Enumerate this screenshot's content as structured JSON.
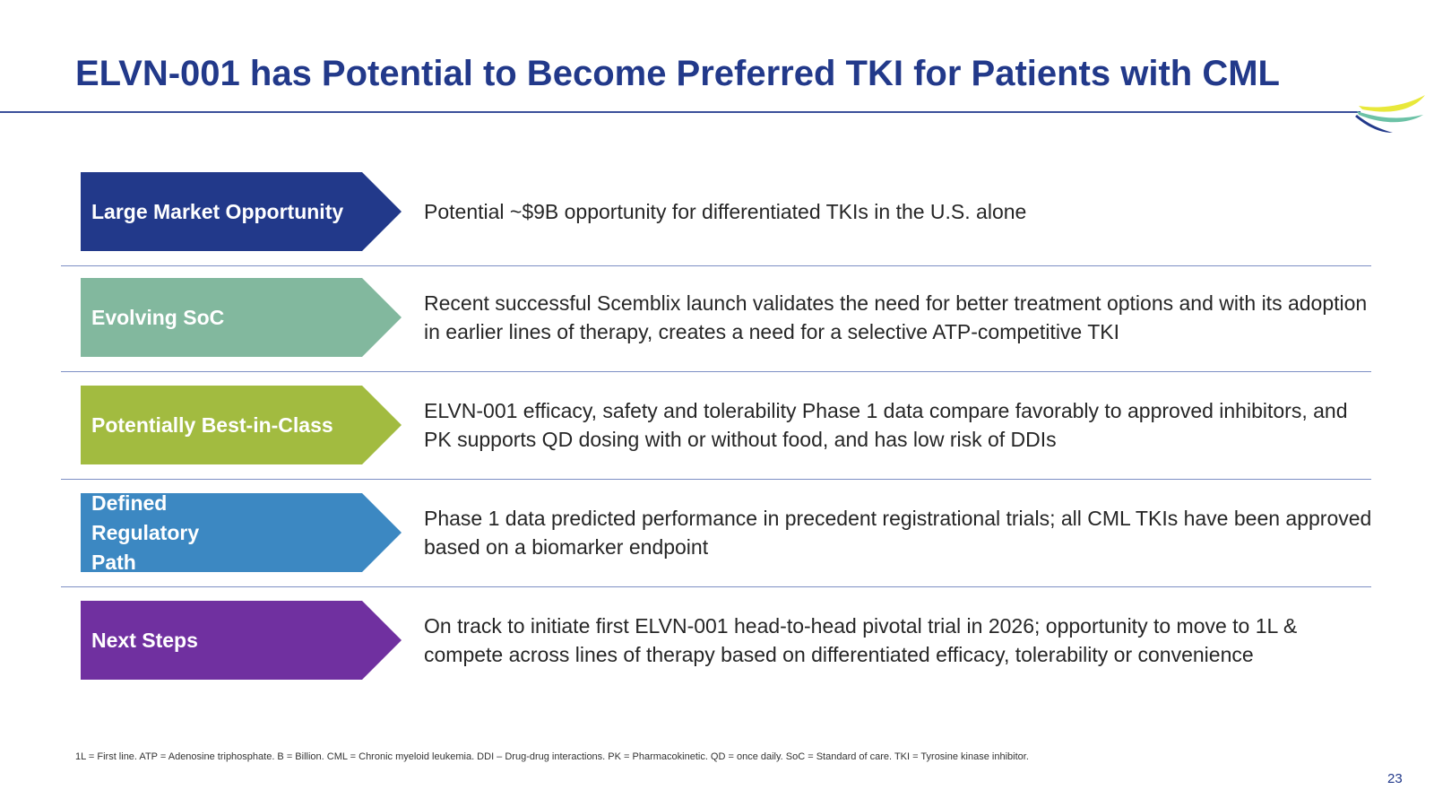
{
  "slide": {
    "title": "ELVN-001 has Potential to Become Preferred TKI for Patients with CML",
    "rows": [
      {
        "label": "Large Market Opportunity",
        "color": "#22398a",
        "text": "Potential ~$9B opportunity for differentiated TKIs in the U.S. alone"
      },
      {
        "label": "Evolving SoC",
        "color": "#82b89e",
        "text": "Recent successful Scemblix launch validates the need for better treatment options and with its adoption in earlier lines of therapy, creates a need for a selective ATP-competitive TKI"
      },
      {
        "label": "Potentially Best-in-Class",
        "color": "#a2bb40",
        "text": "ELVN-001 efficacy, safety and tolerability Phase 1 data compare favorably to approved inhibitors, and PK supports QD dosing with or without food, and has low risk of DDIs"
      },
      {
        "label": "Defined Regulatory Path",
        "color": "#3c88c2",
        "text": "Phase 1 data predicted performance in precedent registrational trials; all CML TKIs have been approved based on a biomarker endpoint"
      },
      {
        "label": "Next Steps",
        "color": "#7030a0",
        "text": "On track to initiate first ELVN-001 head-to-head pivotal trial in 2026; opportunity to move to 1L & compete across lines of therapy based on differentiated efficacy, tolerability or convenience"
      }
    ],
    "footnote": "1L = First line. ATP = Adenosine triphosphate. B = Billion. CML = Chronic myeloid leukemia. DDI – Drug-drug interactions. PK = Pharmacokinetic. QD = once daily. SoC = Standard of care. TKI = Tyrosine kinase inhibitor.",
    "page_number": "23"
  }
}
